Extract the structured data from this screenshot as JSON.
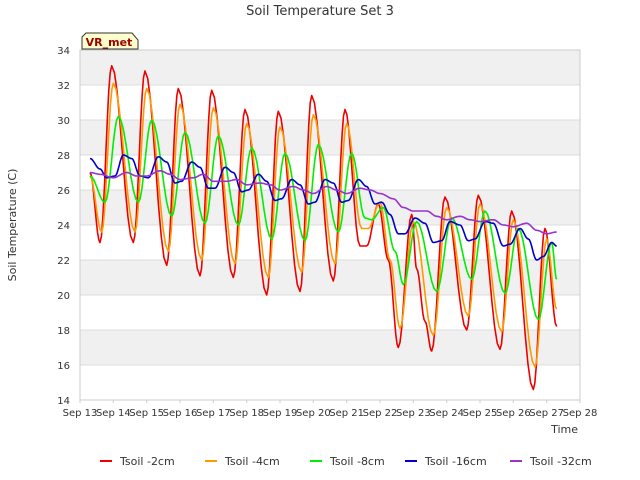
{
  "chart_data": {
    "type": "line",
    "title": "Soil Temperature Set 3",
    "xlabel": "Time",
    "ylabel": "Soil Temperature (C)",
    "badge": "VR_met",
    "ylim": [
      14,
      34
    ],
    "yticks": [
      14,
      16,
      18,
      20,
      22,
      24,
      26,
      28,
      30,
      32,
      34
    ],
    "xlim": [
      13,
      28
    ],
    "xticks": [
      {
        "v": 13,
        "label": "Sep 13"
      },
      {
        "v": 14,
        "label": "Sep 14"
      },
      {
        "v": 15,
        "label": "Sep 15"
      },
      {
        "v": 16,
        "label": "Sep 16"
      },
      {
        "v": 17,
        "label": "Sep 17"
      },
      {
        "v": 18,
        "label": "Sep 18"
      },
      {
        "v": 19,
        "label": "Sep 19"
      },
      {
        "v": 20,
        "label": "Sep 20"
      },
      {
        "v": 21,
        "label": "Sep 21"
      },
      {
        "v": 22,
        "label": "Sep 22"
      },
      {
        "v": 23,
        "label": "Sep 23"
      },
      {
        "v": 24,
        "label": "Sep 24"
      },
      {
        "v": 25,
        "label": "Sep 25"
      },
      {
        "v": 26,
        "label": "Sep 26"
      },
      {
        "v": 27,
        "label": "Sep 27"
      },
      {
        "v": 28,
        "label": "Sep 28"
      }
    ],
    "grid": true,
    "legend_position": "bottom",
    "series": [
      {
        "name": "Tsoil -2cm",
        "color": "#ee0000",
        "points": [
          [
            13.3,
            27.0
          ],
          [
            13.6,
            23.0
          ],
          [
            13.95,
            33.1
          ],
          [
            14.6,
            23.0
          ],
          [
            14.95,
            32.8
          ],
          [
            15.6,
            21.7
          ],
          [
            15.95,
            31.8
          ],
          [
            16.6,
            21.1
          ],
          [
            16.95,
            31.7
          ],
          [
            17.6,
            21.0
          ],
          [
            17.95,
            30.6
          ],
          [
            18.6,
            20.0
          ],
          [
            18.95,
            30.5
          ],
          [
            19.6,
            20.2
          ],
          [
            19.95,
            31.4
          ],
          [
            20.6,
            20.8
          ],
          [
            20.95,
            30.6
          ],
          [
            21.4,
            22.8
          ],
          [
            21.6,
            22.8
          ],
          [
            21.95,
            25.2
          ],
          [
            22.25,
            22.0
          ],
          [
            22.55,
            17.0
          ],
          [
            22.95,
            24.6
          ],
          [
            23.1,
            21.5
          ],
          [
            23.35,
            18.5
          ],
          [
            23.55,
            16.8
          ],
          [
            23.95,
            25.6
          ],
          [
            24.6,
            18.0
          ],
          [
            24.95,
            25.7
          ],
          [
            25.6,
            16.9
          ],
          [
            25.95,
            24.8
          ],
          [
            26.6,
            14.6
          ],
          [
            26.95,
            23.8
          ],
          [
            27.3,
            18.2
          ]
        ]
      },
      {
        "name": "Tsoil -4cm",
        "color": "#ff9900",
        "points": [
          [
            13.3,
            26.8
          ],
          [
            13.65,
            23.6
          ],
          [
            14.0,
            32.1
          ],
          [
            14.65,
            23.6
          ],
          [
            15.0,
            31.8
          ],
          [
            15.65,
            22.5
          ],
          [
            16.0,
            30.9
          ],
          [
            16.65,
            22.0
          ],
          [
            17.0,
            30.7
          ],
          [
            17.65,
            21.8
          ],
          [
            18.0,
            29.8
          ],
          [
            18.65,
            21.0
          ],
          [
            19.0,
            29.6
          ],
          [
            19.65,
            21.3
          ],
          [
            20.0,
            30.3
          ],
          [
            20.65,
            21.8
          ],
          [
            21.0,
            29.8
          ],
          [
            21.45,
            23.8
          ],
          [
            21.65,
            23.8
          ],
          [
            22.0,
            25.3
          ],
          [
            22.3,
            22.0
          ],
          [
            22.6,
            18.1
          ],
          [
            23.0,
            24.2
          ],
          [
            23.6,
            17.7
          ],
          [
            24.0,
            25.0
          ],
          [
            24.65,
            18.8
          ],
          [
            25.0,
            25.2
          ],
          [
            25.65,
            17.9
          ],
          [
            26.0,
            24.3
          ],
          [
            26.65,
            15.9
          ],
          [
            27.0,
            23.2
          ],
          [
            27.3,
            19.2
          ]
        ]
      },
      {
        "name": "Tsoil -8cm",
        "color": "#00ee00",
        "points": [
          [
            13.3,
            26.8
          ],
          [
            13.75,
            25.3
          ],
          [
            14.15,
            30.2
          ],
          [
            14.75,
            25.3
          ],
          [
            15.15,
            30.0
          ],
          [
            15.75,
            24.5
          ],
          [
            16.15,
            29.3
          ],
          [
            16.75,
            24.1
          ],
          [
            17.15,
            29.1
          ],
          [
            17.75,
            24.0
          ],
          [
            18.15,
            28.4
          ],
          [
            18.75,
            23.2
          ],
          [
            19.15,
            28.1
          ],
          [
            19.75,
            23.1
          ],
          [
            20.15,
            28.6
          ],
          [
            20.75,
            23.6
          ],
          [
            21.15,
            28.1
          ],
          [
            21.55,
            24.4
          ],
          [
            21.75,
            24.3
          ],
          [
            22.1,
            25.0
          ],
          [
            22.45,
            22.5
          ],
          [
            22.7,
            20.6
          ],
          [
            23.1,
            24.2
          ],
          [
            23.7,
            20.2
          ],
          [
            24.15,
            24.4
          ],
          [
            24.75,
            20.9
          ],
          [
            25.15,
            24.8
          ],
          [
            25.75,
            20.1
          ],
          [
            26.15,
            23.8
          ],
          [
            26.75,
            18.6
          ],
          [
            27.15,
            23.0
          ],
          [
            27.3,
            20.9
          ]
        ]
      },
      {
        "name": "Tsoil -16cm",
        "color": "#0000cc",
        "points": [
          [
            13.3,
            27.8
          ],
          [
            13.6,
            27.2
          ],
          [
            13.8,
            26.7
          ],
          [
            14.05,
            26.8
          ],
          [
            14.3,
            28.0
          ],
          [
            14.55,
            27.8
          ],
          [
            14.8,
            26.8
          ],
          [
            15.05,
            26.7
          ],
          [
            15.35,
            27.9
          ],
          [
            15.6,
            27.6
          ],
          [
            15.85,
            26.4
          ],
          [
            16.05,
            26.5
          ],
          [
            16.35,
            27.6
          ],
          [
            16.6,
            27.3
          ],
          [
            16.85,
            26.1
          ],
          [
            17.05,
            26.1
          ],
          [
            17.35,
            27.3
          ],
          [
            17.6,
            27.0
          ],
          [
            17.85,
            25.9
          ],
          [
            18.05,
            26.0
          ],
          [
            18.35,
            26.9
          ],
          [
            18.6,
            26.5
          ],
          [
            18.85,
            25.4
          ],
          [
            19.05,
            25.5
          ],
          [
            19.35,
            26.6
          ],
          [
            19.6,
            26.3
          ],
          [
            19.85,
            25.2
          ],
          [
            20.05,
            25.3
          ],
          [
            20.35,
            26.6
          ],
          [
            20.6,
            26.4
          ],
          [
            20.85,
            25.3
          ],
          [
            21.05,
            25.4
          ],
          [
            21.35,
            26.6
          ],
          [
            21.6,
            26.2
          ],
          [
            21.85,
            25.2
          ],
          [
            22.05,
            25.3
          ],
          [
            22.3,
            24.6
          ],
          [
            22.55,
            23.5
          ],
          [
            22.75,
            23.5
          ],
          [
            23.05,
            24.4
          ],
          [
            23.35,
            24.1
          ],
          [
            23.6,
            23.0
          ],
          [
            23.85,
            23.1
          ],
          [
            24.1,
            24.2
          ],
          [
            24.4,
            24.0
          ],
          [
            24.65,
            23.1
          ],
          [
            24.85,
            23.2
          ],
          [
            25.15,
            24.2
          ],
          [
            25.4,
            24.1
          ],
          [
            25.7,
            22.8
          ],
          [
            25.9,
            22.9
          ],
          [
            26.2,
            23.8
          ],
          [
            26.45,
            23.2
          ],
          [
            26.7,
            22.0
          ],
          [
            26.9,
            22.2
          ],
          [
            27.15,
            23.0
          ],
          [
            27.3,
            22.8
          ]
        ]
      },
      {
        "name": "Tsoil -32cm",
        "color": "#9933cc",
        "points": [
          [
            13.3,
            27.0
          ],
          [
            13.6,
            26.9
          ],
          [
            14.0,
            26.7
          ],
          [
            14.4,
            27.0
          ],
          [
            14.7,
            26.8
          ],
          [
            15.0,
            26.8
          ],
          [
            15.4,
            27.1
          ],
          [
            15.7,
            26.9
          ],
          [
            16.0,
            26.6
          ],
          [
            16.4,
            26.7
          ],
          [
            16.7,
            26.9
          ],
          [
            17.0,
            26.5
          ],
          [
            17.4,
            26.5
          ],
          [
            17.7,
            26.6
          ],
          [
            18.0,
            26.3
          ],
          [
            18.4,
            26.4
          ],
          [
            18.7,
            26.3
          ],
          [
            19.0,
            26.0
          ],
          [
            19.4,
            26.2
          ],
          [
            19.7,
            26.0
          ],
          [
            20.0,
            25.8
          ],
          [
            20.4,
            26.2
          ],
          [
            20.7,
            26.0
          ],
          [
            21.0,
            25.8
          ],
          [
            21.4,
            26.1
          ],
          [
            21.7,
            26.0
          ],
          [
            22.0,
            25.8
          ],
          [
            22.4,
            25.5
          ],
          [
            22.7,
            25.0
          ],
          [
            23.0,
            24.8
          ],
          [
            23.4,
            24.8
          ],
          [
            23.7,
            24.5
          ],
          [
            24.0,
            24.3
          ],
          [
            24.4,
            24.5
          ],
          [
            24.7,
            24.3
          ],
          [
            25.0,
            24.2
          ],
          [
            25.4,
            24.3
          ],
          [
            25.7,
            24.0
          ],
          [
            26.0,
            23.9
          ],
          [
            26.4,
            24.1
          ],
          [
            26.7,
            23.7
          ],
          [
            27.0,
            23.5
          ],
          [
            27.3,
            23.6
          ]
        ]
      }
    ]
  }
}
